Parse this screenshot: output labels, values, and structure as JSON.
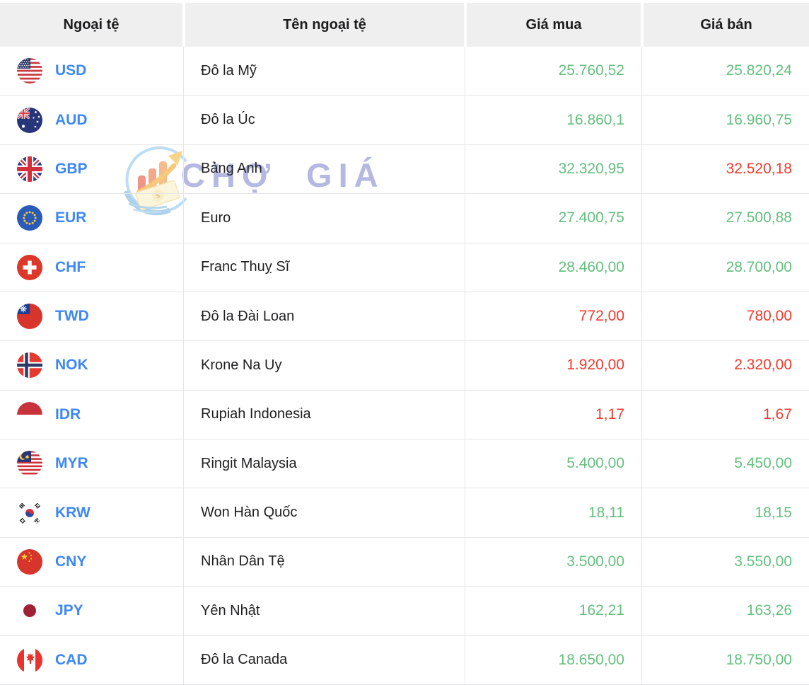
{
  "header": {
    "columns": [
      "Ngoại tệ",
      "Tên ngoại tệ",
      "Giá mua",
      "Giá bán"
    ]
  },
  "watermark": {
    "text": "CHỢ GIÁ",
    "logo_icon": "chogia-logo-icon"
  },
  "colors": {
    "up": "#63c07e",
    "down": "#f2392c",
    "code_blue": "#3d87f8",
    "header_bg": "#efefef"
  },
  "rows": [
    {
      "code": "USD",
      "flag_icon": "flag-usa-icon",
      "name": "Đô la Mỹ",
      "buy": "25.760,52",
      "sell": "25.820,24",
      "buy_trend": "up",
      "sell_trend": "up"
    },
    {
      "code": "AUD",
      "flag_icon": "flag-australia-icon",
      "name": "Đô la Úc",
      "buy": "16.860,1",
      "sell": "16.960,75",
      "buy_trend": "up",
      "sell_trend": "up"
    },
    {
      "code": "GBP",
      "flag_icon": "flag-uk-icon",
      "name": "Bảng Anh",
      "buy": "32.320,95",
      "sell": "32.520,18",
      "buy_trend": "up",
      "sell_trend": "down"
    },
    {
      "code": "EUR",
      "flag_icon": "flag-eu-icon",
      "name": "Euro",
      "buy": "27.400,75",
      "sell": "27.500,88",
      "buy_trend": "up",
      "sell_trend": "up"
    },
    {
      "code": "CHF",
      "flag_icon": "flag-switzerland-icon",
      "name": "Franc Thuỵ Sĩ",
      "buy": "28.460,00",
      "sell": "28.700,00",
      "buy_trend": "up",
      "sell_trend": "up"
    },
    {
      "code": "TWD",
      "flag_icon": "flag-taiwan-icon",
      "name": "Đô la Đài Loan",
      "buy": "772,00",
      "sell": "780,00",
      "buy_trend": "down",
      "sell_trend": "down"
    },
    {
      "code": "NOK",
      "flag_icon": "flag-norway-icon",
      "name": "Krone Na Uy",
      "buy": "1.920,00",
      "sell": "2.320,00",
      "buy_trend": "down",
      "sell_trend": "down"
    },
    {
      "code": "IDR",
      "flag_icon": "flag-indonesia-icon",
      "name": "Rupiah Indonesia",
      "buy": "1,17",
      "sell": "1,67",
      "buy_trend": "down",
      "sell_trend": "down"
    },
    {
      "code": "MYR",
      "flag_icon": "flag-malaysia-icon",
      "name": "Ringit Malaysia",
      "buy": "5.400,00",
      "sell": "5.450,00",
      "buy_trend": "up",
      "sell_trend": "up"
    },
    {
      "code": "KRW",
      "flag_icon": "flag-south-korea-icon",
      "name": "Won Hàn Quốc",
      "buy": "18,11",
      "sell": "18,15",
      "buy_trend": "up",
      "sell_trend": "up"
    },
    {
      "code": "CNY",
      "flag_icon": "flag-china-icon",
      "name": "Nhân Dân Tệ",
      "buy": "3.500,00",
      "sell": "3.550,00",
      "buy_trend": "up",
      "sell_trend": "up"
    },
    {
      "code": "JPY",
      "flag_icon": "flag-japan-icon",
      "name": "Yên Nhật",
      "buy": "162,21",
      "sell": "163,26",
      "buy_trend": "up",
      "sell_trend": "up"
    },
    {
      "code": "CAD",
      "flag_icon": "flag-canada-icon",
      "name": "Đô la Canada",
      "buy": "18.650,00",
      "sell": "18.750,00",
      "buy_trend": "up",
      "sell_trend": "up"
    }
  ]
}
